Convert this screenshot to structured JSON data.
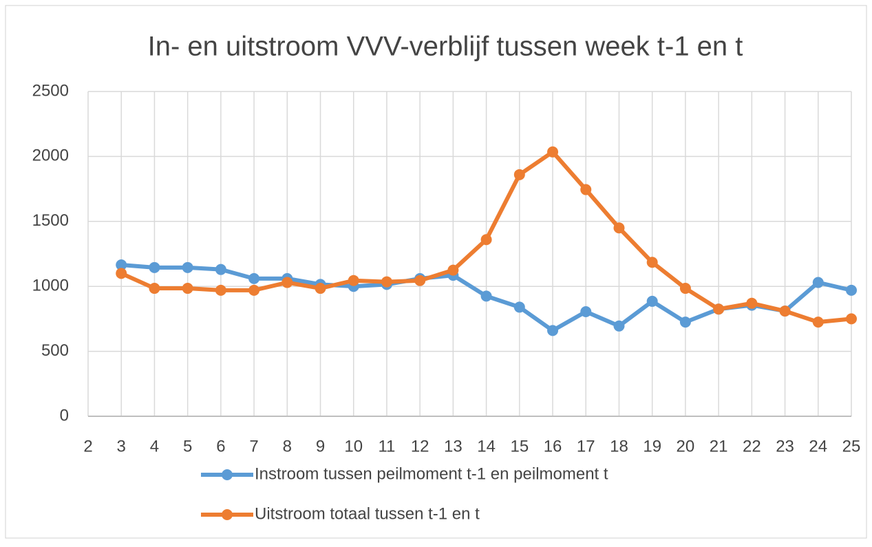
{
  "chart_data": {
    "type": "line",
    "title": "In- en uitstroom VVV-verblijf tussen week t-1 en t",
    "x": [
      3,
      4,
      5,
      6,
      7,
      8,
      9,
      10,
      11,
      12,
      13,
      14,
      15,
      16,
      17,
      18,
      19,
      20,
      21,
      22,
      23,
      24,
      25
    ],
    "series": [
      {
        "name": "Instroom tussen peilmoment t-1 en peilmoment t",
        "color": "#5b9bd5",
        "values": [
          1165,
          1145,
          1145,
          1130,
          1060,
          1060,
          1015,
          1000,
          1015,
          1060,
          1085,
          925,
          840,
          660,
          805,
          695,
          885,
          725,
          825,
          855,
          810,
          1030,
          970
        ]
      },
      {
        "name": "Uitstroom totaal tussen t-1 en t",
        "color": "#ed7d31",
        "values": [
          1100,
          985,
          985,
          970,
          970,
          1030,
          985,
          1045,
          1035,
          1045,
          1125,
          1360,
          1860,
          2035,
          1745,
          1450,
          1185,
          985,
          825,
          870,
          810,
          725,
          750
        ]
      }
    ],
    "xlim": [
      2,
      25
    ],
    "xticks": [
      2,
      3,
      4,
      5,
      6,
      7,
      8,
      9,
      10,
      11,
      12,
      13,
      14,
      15,
      16,
      17,
      18,
      19,
      20,
      21,
      22,
      23,
      24,
      25
    ],
    "ylim": [
      0,
      2500
    ],
    "yticks": [
      0,
      500,
      1000,
      1500,
      2000,
      2500
    ],
    "grid": true,
    "legend": "bottom"
  }
}
